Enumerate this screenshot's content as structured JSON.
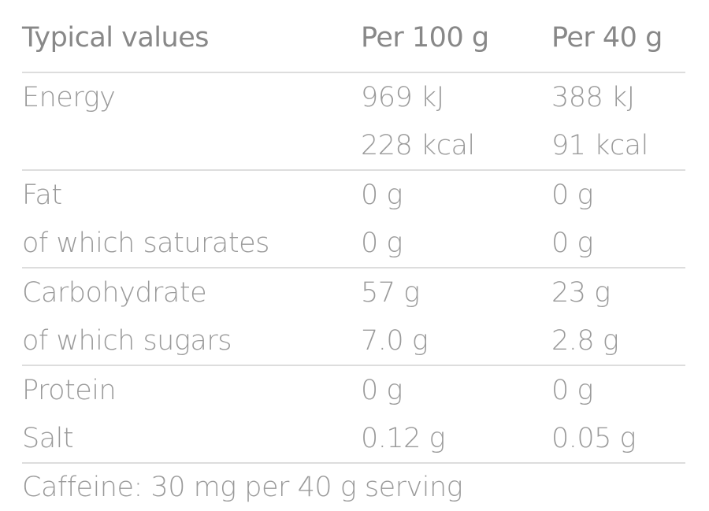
{
  "header": {
    "label": "Typical values",
    "col1": "Per 100 g",
    "col2": "Per 40 g"
  },
  "rows": [
    {
      "label": "Energy",
      "per100": "969 kJ",
      "per40": "388 kJ"
    },
    {
      "label": "",
      "per100": "228 kcal",
      "per40": "91 kcal"
    },
    {
      "label": "Fat",
      "per100": "0 g",
      "per40": "0 g"
    },
    {
      "label": "of which saturates",
      "per100": "0 g",
      "per40": "0 g"
    },
    {
      "label": "Carbohydrate",
      "per100": "57 g",
      "per40": "23 g"
    },
    {
      "label": "of which sugars",
      "per100": "7.0 g",
      "per40": "2.8 g"
    },
    {
      "label": "Protein",
      "per100": "0 g",
      "per40": "0 g"
    },
    {
      "label": "Salt",
      "per100": "0.12 g",
      "per40": "0.05 g"
    }
  ],
  "footnote": "Caffeine: 30 mg per 40 g serving"
}
